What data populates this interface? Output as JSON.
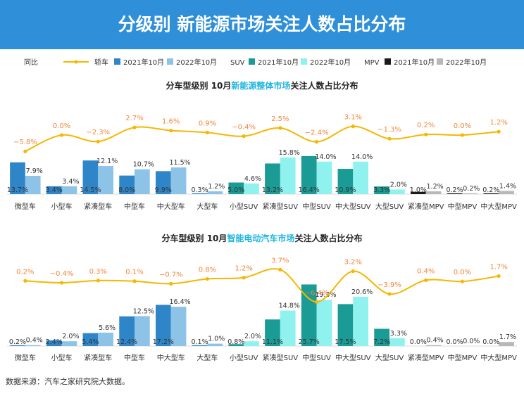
{
  "title": "分级别 新能源市场关注人数占比分布",
  "source": "数据来源：汽车之家研究院大数据。",
  "colors": {
    "banner": "#2f8fd8",
    "sedan_2021": "#2e86c9",
    "sedan_2022": "#8ec3e8",
    "suv_2021": "#1a9b96",
    "suv_2022": "#8ff2ee",
    "mpv_2021": "#1a1a1a",
    "mpv_2022": "#b8b8b8",
    "yoy_line": "#f5b700",
    "yoy_label": "#f0873a"
  },
  "legend": {
    "yoy": "同比",
    "sedan": "轿车",
    "suv": "SUV",
    "mpv": "MPV",
    "y2021": "2021年10月",
    "y2022": "2022年10月"
  },
  "chart_data": [
    {
      "type": "bar",
      "title_parts": [
        "分车型级别 10月",
        "新能源整体市场",
        "关注人数占比分布"
      ],
      "categories": [
        "微型车",
        "小型车",
        "紧凑型车",
        "中型车",
        "中大型车",
        "大型车",
        "小型SUV",
        "紧凑型SUV",
        "中型SUV",
        "中大型SUV",
        "大型SUV",
        "紧凑型MPV",
        "中型MPV",
        "中大型MPV"
      ],
      "groups": [
        "sedan",
        "sedan",
        "sedan",
        "sedan",
        "sedan",
        "sedan",
        "suv",
        "suv",
        "suv",
        "suv",
        "suv",
        "mpv",
        "mpv",
        "mpv"
      ],
      "series": [
        {
          "name": "2021年10月",
          "values": [
            13.7,
            3.4,
            14.5,
            8.0,
            9.9,
            0.3,
            5.0,
            13.2,
            16.4,
            10.9,
            3.3,
            1.0,
            0.2,
            0.2
          ]
        },
        {
          "name": "2022年10月",
          "values": [
            7.9,
            3.4,
            12.1,
            10.7,
            11.5,
            1.2,
            4.6,
            15.8,
            14.0,
            14.0,
            2.0,
            1.2,
            0.2,
            1.4
          ]
        }
      ],
      "yoy": {
        "name": "同比",
        "values": [
          -5.8,
          0.0,
          -2.3,
          2.7,
          1.6,
          0.9,
          -0.4,
          2.5,
          -2.4,
          3.1,
          -1.3,
          0.2,
          0.0,
          1.2
        ]
      },
      "ylim": [
        0,
        20
      ],
      "yoy_range": [
        -6,
        4
      ]
    },
    {
      "type": "bar",
      "title_parts": [
        "分车型级别 10月",
        "智能电动汽车市场",
        "关注人数占比分布"
      ],
      "categories": [
        "微型车",
        "小型车",
        "紧凑型车",
        "中型车",
        "中大型车",
        "大型车",
        "小型SUV",
        "紧凑型SUV",
        "中型SUV",
        "中大型SUV",
        "大型SUV",
        "紧凑型MPV",
        "中型MPV",
        "中大型MPV"
      ],
      "groups": [
        "sedan",
        "sedan",
        "sedan",
        "sedan",
        "sedan",
        "sedan",
        "suv",
        "suv",
        "suv",
        "suv",
        "suv",
        "mpv",
        "mpv",
        "mpv"
      ],
      "series": [
        {
          "name": "2021年10月",
          "values": [
            0.2,
            2.4,
            5.4,
            12.4,
            17.2,
            0.1,
            0.8,
            11.1,
            25.7,
            17.5,
            7.2,
            0.0,
            0.0,
            0.0
          ]
        },
        {
          "name": "2022年10月",
          "values": [
            0.4,
            2.0,
            5.6,
            12.5,
            16.4,
            1.0,
            2.0,
            14.8,
            19.3,
            20.6,
            3.3,
            0.4,
            0.0,
            1.7
          ]
        }
      ],
      "yoy": {
        "name": "同比",
        "values": [
          0.2,
          -0.4,
          0.3,
          0.1,
          -0.7,
          0.8,
          1.2,
          3.7,
          -6.4,
          3.2,
          -3.9,
          0.4,
          0.0,
          1.7
        ]
      },
      "ylim": [
        0,
        27
      ],
      "yoy_range": [
        -7,
        4
      ]
    }
  ]
}
